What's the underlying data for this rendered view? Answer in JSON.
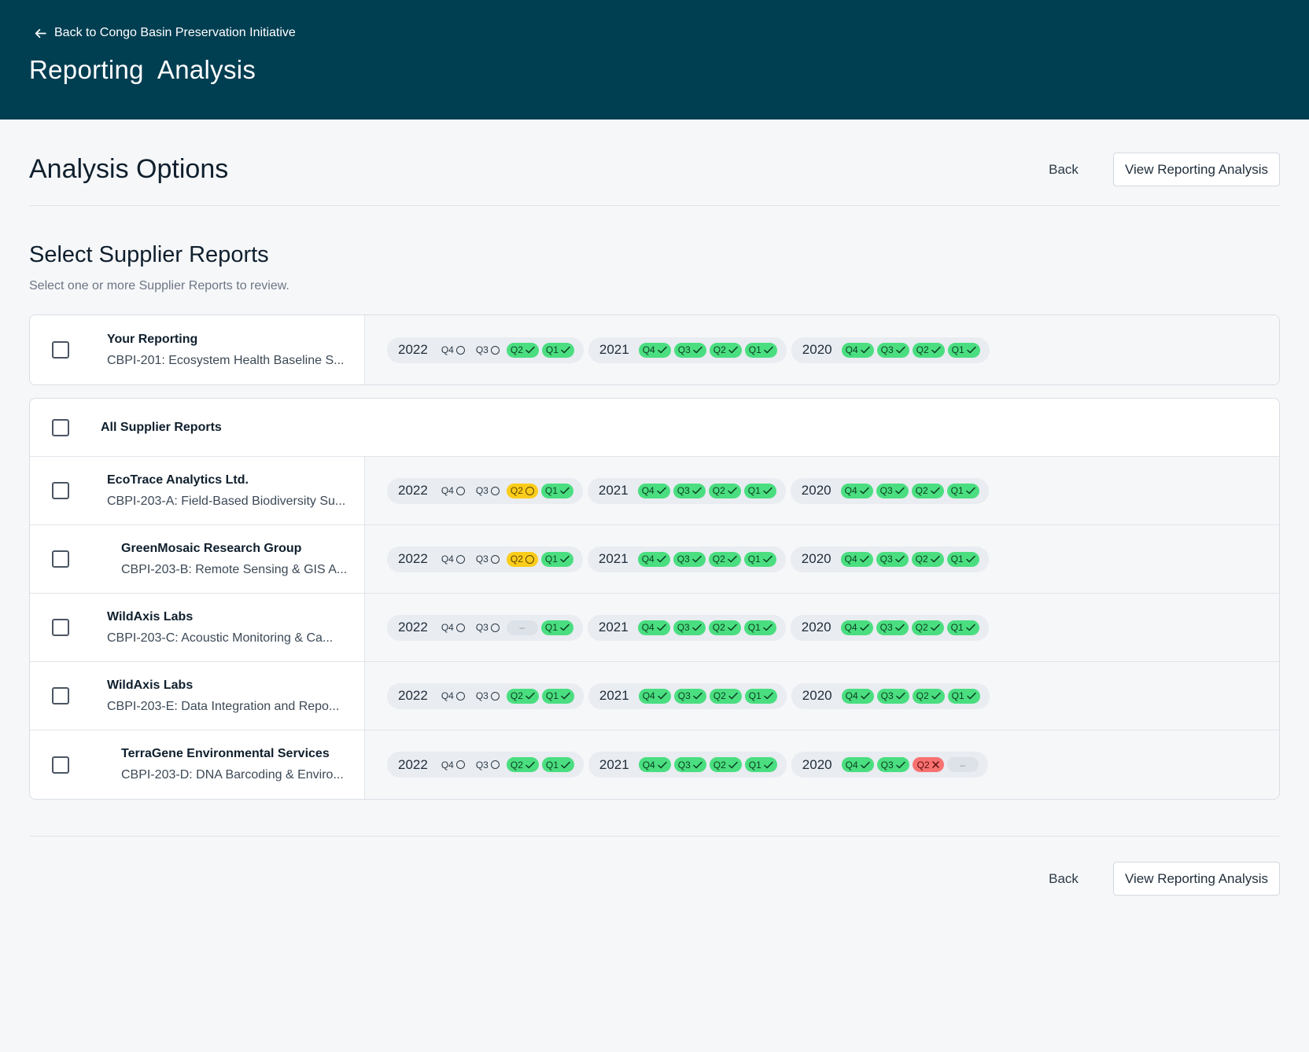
{
  "header": {
    "back_label": "Back to Congo Basin Preservation Initiative",
    "title": "Reporting  Analysis"
  },
  "options": {
    "title": "Analysis Options",
    "back_label": "Back",
    "view_label": "View Reporting Analysis"
  },
  "section": {
    "title": "Select Supplier Reports",
    "subtitle": "Select one or more Supplier Reports to review."
  },
  "your_reporting": {
    "name": "Your Reporting",
    "desc": "CBPI-201: Ecosystem Health Baseline S...",
    "years": [
      {
        "year": "2022",
        "quarters": [
          {
            "q": "Q4",
            "s": "pending"
          },
          {
            "q": "Q3",
            "s": "pending"
          },
          {
            "q": "Q2",
            "s": "done"
          },
          {
            "q": "Q1",
            "s": "done"
          }
        ]
      },
      {
        "year": "2021",
        "quarters": [
          {
            "q": "Q4",
            "s": "done"
          },
          {
            "q": "Q3",
            "s": "done"
          },
          {
            "q": "Q2",
            "s": "done"
          },
          {
            "q": "Q1",
            "s": "done"
          }
        ]
      },
      {
        "year": "2020",
        "quarters": [
          {
            "q": "Q4",
            "s": "done"
          },
          {
            "q": "Q3",
            "s": "done"
          },
          {
            "q": "Q2",
            "s": "done"
          },
          {
            "q": "Q1",
            "s": "done"
          }
        ]
      }
    ]
  },
  "all_label": "All Supplier Reports",
  "suppliers": [
    {
      "name": "EcoTrace Analytics Ltd.",
      "desc": "CBPI-203-A: Field-Based Biodiversity Su...",
      "indent": false,
      "years": [
        {
          "year": "2022",
          "quarters": [
            {
              "q": "Q4",
              "s": "pending"
            },
            {
              "q": "Q3",
              "s": "pending"
            },
            {
              "q": "Q2",
              "s": "warn"
            },
            {
              "q": "Q1",
              "s": "done"
            }
          ]
        },
        {
          "year": "2021",
          "quarters": [
            {
              "q": "Q4",
              "s": "done"
            },
            {
              "q": "Q3",
              "s": "done"
            },
            {
              "q": "Q2",
              "s": "done"
            },
            {
              "q": "Q1",
              "s": "done"
            }
          ]
        },
        {
          "year": "2020",
          "quarters": [
            {
              "q": "Q4",
              "s": "done"
            },
            {
              "q": "Q3",
              "s": "done"
            },
            {
              "q": "Q2",
              "s": "done"
            },
            {
              "q": "Q1",
              "s": "done"
            }
          ]
        }
      ]
    },
    {
      "name": "GreenMosaic Research Group",
      "desc": "CBPI-203-B: Remote Sensing & GIS A...",
      "indent": true,
      "years": [
        {
          "year": "2022",
          "quarters": [
            {
              "q": "Q4",
              "s": "pending"
            },
            {
              "q": "Q3",
              "s": "pending"
            },
            {
              "q": "Q2",
              "s": "warn"
            },
            {
              "q": "Q1",
              "s": "done"
            }
          ]
        },
        {
          "year": "2021",
          "quarters": [
            {
              "q": "Q4",
              "s": "done"
            },
            {
              "q": "Q3",
              "s": "done"
            },
            {
              "q": "Q2",
              "s": "done"
            },
            {
              "q": "Q1",
              "s": "done"
            }
          ]
        },
        {
          "year": "2020",
          "quarters": [
            {
              "q": "Q4",
              "s": "done"
            },
            {
              "q": "Q3",
              "s": "done"
            },
            {
              "q": "Q2",
              "s": "done"
            },
            {
              "q": "Q1",
              "s": "done"
            }
          ]
        }
      ]
    },
    {
      "name": "WildAxis Labs",
      "desc": "CBPI-203-C: Acoustic Monitoring & Ca...",
      "indent": false,
      "years": [
        {
          "year": "2022",
          "quarters": [
            {
              "q": "Q4",
              "s": "pending"
            },
            {
              "q": "Q3",
              "s": "pending"
            },
            {
              "q": "",
              "s": "empty"
            },
            {
              "q": "Q1",
              "s": "done"
            }
          ]
        },
        {
          "year": "2021",
          "quarters": [
            {
              "q": "Q4",
              "s": "done"
            },
            {
              "q": "Q3",
              "s": "done"
            },
            {
              "q": "Q2",
              "s": "done"
            },
            {
              "q": "Q1",
              "s": "done"
            }
          ]
        },
        {
          "year": "2020",
          "quarters": [
            {
              "q": "Q4",
              "s": "done"
            },
            {
              "q": "Q3",
              "s": "done"
            },
            {
              "q": "Q2",
              "s": "done"
            },
            {
              "q": "Q1",
              "s": "done"
            }
          ]
        }
      ]
    },
    {
      "name": "WildAxis Labs",
      "desc": "CBPI-203-E: Data Integration and Repo...",
      "indent": false,
      "years": [
        {
          "year": "2022",
          "quarters": [
            {
              "q": "Q4",
              "s": "pending"
            },
            {
              "q": "Q3",
              "s": "pending"
            },
            {
              "q": "Q2",
              "s": "done"
            },
            {
              "q": "Q1",
              "s": "done"
            }
          ]
        },
        {
          "year": "2021",
          "quarters": [
            {
              "q": "Q4",
              "s": "done"
            },
            {
              "q": "Q3",
              "s": "done"
            },
            {
              "q": "Q2",
              "s": "done"
            },
            {
              "q": "Q1",
              "s": "done"
            }
          ]
        },
        {
          "year": "2020",
          "quarters": [
            {
              "q": "Q4",
              "s": "done"
            },
            {
              "q": "Q3",
              "s": "done"
            },
            {
              "q": "Q2",
              "s": "done"
            },
            {
              "q": "Q1",
              "s": "done"
            }
          ]
        }
      ]
    },
    {
      "name": "TerraGene Environmental Services",
      "desc": "CBPI-203-D: DNA Barcoding & Enviro...",
      "indent": true,
      "years": [
        {
          "year": "2022",
          "quarters": [
            {
              "q": "Q4",
              "s": "pending"
            },
            {
              "q": "Q3",
              "s": "pending"
            },
            {
              "q": "Q2",
              "s": "done"
            },
            {
              "q": "Q1",
              "s": "done"
            }
          ]
        },
        {
          "year": "2021",
          "quarters": [
            {
              "q": "Q4",
              "s": "done"
            },
            {
              "q": "Q3",
              "s": "done"
            },
            {
              "q": "Q2",
              "s": "done"
            },
            {
              "q": "Q1",
              "s": "done"
            }
          ]
        },
        {
          "year": "2020",
          "quarters": [
            {
              "q": "Q4",
              "s": "done"
            },
            {
              "q": "Q3",
              "s": "done"
            },
            {
              "q": "Q2",
              "s": "fail"
            },
            {
              "q": "",
              "s": "empty"
            }
          ]
        }
      ]
    }
  ],
  "footer": {
    "back_label": "Back",
    "view_label": "View Reporting Analysis"
  },
  "colors": {
    "header_bg": "#003e52",
    "done": "#4ade80",
    "warn": "#fbcd1a",
    "fail": "#f87171",
    "empty": "#dde2e9"
  }
}
